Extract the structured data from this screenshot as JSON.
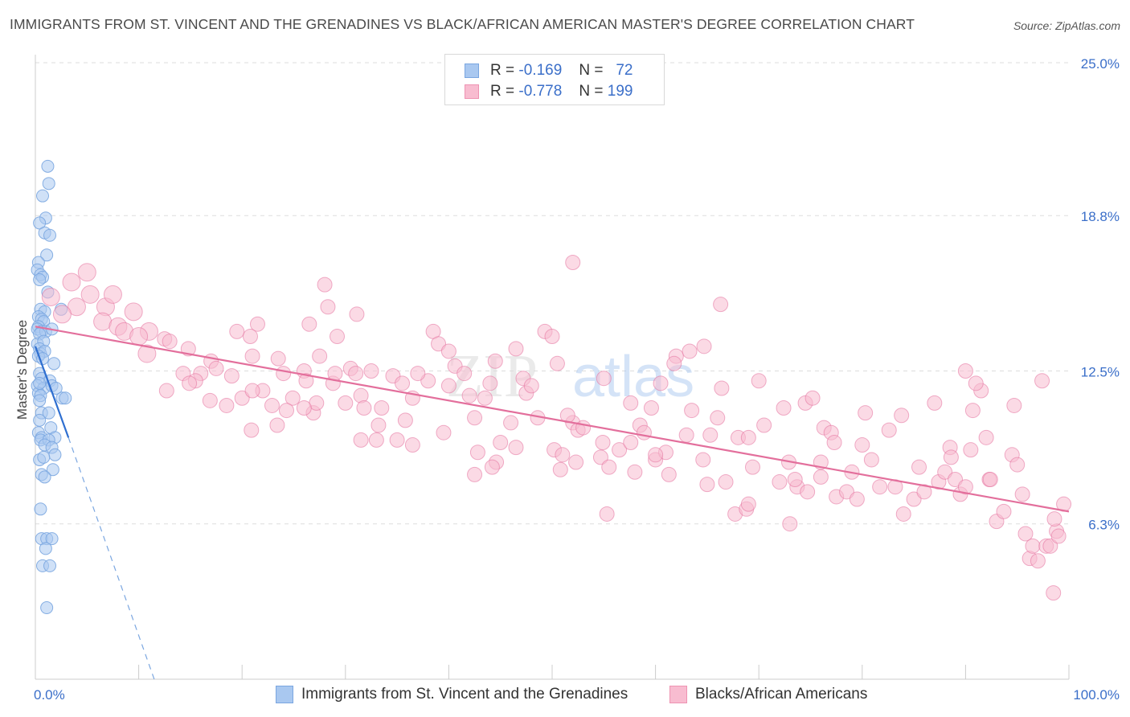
{
  "title": "IMMIGRANTS FROM ST. VINCENT AND THE GRENADINES VS BLACK/AFRICAN AMERICAN MASTER'S DEGREE CORRELATION CHART",
  "source": "Source: ZipAtlas.com",
  "watermark": {
    "zip": "ZIP",
    "atlas": "atlas"
  },
  "legend": {
    "rows": [
      {
        "r_label": "R =",
        "r_value": "-0.169",
        "n_label": "N =",
        "n_value": "72",
        "color": "#a9c8f0",
        "border": "#7aa6e0"
      },
      {
        "r_label": "R =",
        "r_value": "-0.778",
        "n_label": "N =",
        "n_value": "199",
        "color": "#f8bcd0",
        "border": "#ee93b2"
      }
    ]
  },
  "chart_data": {
    "type": "scatter",
    "ylabel": "Master's Degree",
    "xlim": [
      0,
      100
    ],
    "ylim": [
      0,
      25
    ],
    "x_tick_labels": [
      "0.0%",
      "100.0%"
    ],
    "y_ticks": [
      6.3,
      12.5,
      18.8,
      25.0
    ],
    "y_tick_labels": [
      "6.3%",
      "12.5%",
      "18.8%",
      "25.0%"
    ],
    "grid": true,
    "legend_position": "top-center",
    "series": [
      {
        "name": "Immigrants from St. Vincent and the Grenadines",
        "color": "#7aa6e0",
        "fill": "#a9c8f0",
        "trend": {
          "x1": 0.0,
          "y1": 13.5,
          "x2": 3.2,
          "y2": 9.8,
          "dash_x2": 11.5,
          "dash_y2": 0.0
        },
        "points": [
          [
            1.2,
            20.8
          ],
          [
            1.3,
            20.1
          ],
          [
            0.7,
            19.6
          ],
          [
            1.0,
            18.7
          ],
          [
            0.4,
            18.5
          ],
          [
            0.9,
            18.1
          ],
          [
            1.4,
            18.0
          ],
          [
            1.1,
            17.2
          ],
          [
            0.3,
            16.9
          ],
          [
            0.2,
            16.6
          ],
          [
            0.5,
            16.4
          ],
          [
            0.7,
            16.3
          ],
          [
            0.4,
            16.2
          ],
          [
            1.2,
            15.7
          ],
          [
            0.5,
            15.0
          ],
          [
            0.9,
            14.9
          ],
          [
            2.5,
            15.0
          ],
          [
            0.3,
            14.7
          ],
          [
            0.6,
            14.6
          ],
          [
            0.8,
            14.5
          ],
          [
            0.3,
            14.3
          ],
          [
            0.2,
            14.2
          ],
          [
            0.6,
            14.1
          ],
          [
            1.0,
            14.1
          ],
          [
            1.6,
            14.2
          ],
          [
            0.4,
            14.0
          ],
          [
            0.2,
            13.6
          ],
          [
            0.8,
            13.7
          ],
          [
            0.4,
            13.4
          ],
          [
            0.5,
            13.2
          ],
          [
            0.9,
            13.3
          ],
          [
            0.3,
            13.1
          ],
          [
            0.7,
            13.0
          ],
          [
            1.8,
            12.8
          ],
          [
            0.4,
            12.4
          ],
          [
            0.6,
            12.2
          ],
          [
            1.4,
            12.1
          ],
          [
            0.2,
            11.9
          ],
          [
            0.8,
            11.8
          ],
          [
            1.6,
            11.9
          ],
          [
            2.0,
            11.8
          ],
          [
            0.3,
            11.6
          ],
          [
            0.5,
            11.5
          ],
          [
            0.4,
            11.3
          ],
          [
            2.6,
            11.4
          ],
          [
            2.9,
            11.4
          ],
          [
            0.6,
            10.8
          ],
          [
            1.3,
            10.8
          ],
          [
            0.4,
            10.5
          ],
          [
            1.5,
            10.2
          ],
          [
            0.3,
            10.0
          ],
          [
            0.6,
            9.8
          ],
          [
            1.9,
            9.8
          ],
          [
            0.5,
            9.7
          ],
          [
            1.3,
            9.7
          ],
          [
            0.9,
            9.5
          ],
          [
            1.6,
            9.4
          ],
          [
            1.9,
            9.1
          ],
          [
            0.4,
            8.9
          ],
          [
            1.7,
            8.5
          ],
          [
            0.6,
            8.3
          ],
          [
            0.9,
            8.2
          ],
          [
            0.5,
            6.9
          ],
          [
            0.6,
            5.7
          ],
          [
            1.1,
            5.7
          ],
          [
            1.6,
            5.7
          ],
          [
            1.0,
            5.3
          ],
          [
            0.7,
            4.6
          ],
          [
            1.4,
            4.6
          ],
          [
            1.1,
            2.9
          ],
          [
            0.4,
            12.0
          ],
          [
            0.8,
            9.0
          ]
        ]
      },
      {
        "name": "Blacks/African Americans",
        "color": "#e36f9c",
        "fill": "#f8bcd0",
        "trend": {
          "x1": 0.0,
          "y1": 14.3,
          "x2": 100.0,
          "y2": 6.8
        },
        "points": [
          [
            1.5,
            15.5
          ],
          [
            3.5,
            16.1
          ],
          [
            5.0,
            16.5
          ],
          [
            5.3,
            15.6
          ],
          [
            4.0,
            15.1
          ],
          [
            6.8,
            15.1
          ],
          [
            2.6,
            14.8
          ],
          [
            7.5,
            15.6
          ],
          [
            9.5,
            14.9
          ],
          [
            6.5,
            14.5
          ],
          [
            8.0,
            14.3
          ],
          [
            8.6,
            14.1
          ],
          [
            11.0,
            14.1
          ],
          [
            10.0,
            13.9
          ],
          [
            12.5,
            13.8
          ],
          [
            13.0,
            13.7
          ],
          [
            14.8,
            13.4
          ],
          [
            10.8,
            13.2
          ],
          [
            17.0,
            12.9
          ],
          [
            17.5,
            12.6
          ],
          [
            14.3,
            12.4
          ],
          [
            16.0,
            12.4
          ],
          [
            15.5,
            12.1
          ],
          [
            12.7,
            11.7
          ],
          [
            14.9,
            12.0
          ],
          [
            19.5,
            14.1
          ],
          [
            21.5,
            14.4
          ],
          [
            20.8,
            13.9
          ],
          [
            21.0,
            13.1
          ],
          [
            23.5,
            13.0
          ],
          [
            19.0,
            12.3
          ],
          [
            24.0,
            12.4
          ],
          [
            22.0,
            11.7
          ],
          [
            22.9,
            11.1
          ],
          [
            20.0,
            11.4
          ],
          [
            18.5,
            11.1
          ],
          [
            21.0,
            11.7
          ],
          [
            16.9,
            11.3
          ],
          [
            28.0,
            16.0
          ],
          [
            26.5,
            14.4
          ],
          [
            26.0,
            12.5
          ],
          [
            24.9,
            11.4
          ],
          [
            28.8,
            12.0
          ],
          [
            24.3,
            10.9
          ],
          [
            20.9,
            10.1
          ],
          [
            23.4,
            10.3
          ],
          [
            26.9,
            10.8
          ],
          [
            27.2,
            11.2
          ],
          [
            26.0,
            11.0
          ],
          [
            27.5,
            13.1
          ],
          [
            29.0,
            12.4
          ],
          [
            30.5,
            12.6
          ],
          [
            31.0,
            12.4
          ],
          [
            31.5,
            11.5
          ],
          [
            30.0,
            11.2
          ],
          [
            31.8,
            11.0
          ],
          [
            28.3,
            15.1
          ],
          [
            31.1,
            14.8
          ],
          [
            29.2,
            13.9
          ],
          [
            32.5,
            12.5
          ],
          [
            33.5,
            11.0
          ],
          [
            33.0,
            9.7
          ],
          [
            35.0,
            9.7
          ],
          [
            36.5,
            9.5
          ],
          [
            36.5,
            11.4
          ],
          [
            38.0,
            12.1
          ],
          [
            37.0,
            12.4
          ],
          [
            34.6,
            12.3
          ],
          [
            35.8,
            10.5
          ],
          [
            38.5,
            14.1
          ],
          [
            39.0,
            13.6
          ],
          [
            40.0,
            13.3
          ],
          [
            40.6,
            12.7
          ],
          [
            42.0,
            11.5
          ],
          [
            41.5,
            12.4
          ],
          [
            42.5,
            10.6
          ],
          [
            40.0,
            11.9
          ],
          [
            42.8,
            9.2
          ],
          [
            44.6,
            8.8
          ],
          [
            44.2,
            8.6
          ],
          [
            46.5,
            13.4
          ],
          [
            44.5,
            12.9
          ],
          [
            43.5,
            11.4
          ],
          [
            46.0,
            10.4
          ],
          [
            45.0,
            9.6
          ],
          [
            42.5,
            8.3
          ],
          [
            47.5,
            11.6
          ],
          [
            47.2,
            12.2
          ],
          [
            48.0,
            11.9
          ],
          [
            49.3,
            14.1
          ],
          [
            48.6,
            10.6
          ],
          [
            50.2,
            9.3
          ],
          [
            51.0,
            9.1
          ],
          [
            52.0,
            10.4
          ],
          [
            52.5,
            10.1
          ],
          [
            53.0,
            10.2
          ],
          [
            54.7,
            9.0
          ],
          [
            54.9,
            9.6
          ],
          [
            50.8,
            8.5
          ],
          [
            52.3,
            8.8
          ],
          [
            50.5,
            12.8
          ],
          [
            51.5,
            10.7
          ],
          [
            52.0,
            16.9
          ],
          [
            55.5,
            8.6
          ],
          [
            56.5,
            9.3
          ],
          [
            55.3,
            6.7
          ],
          [
            57.6,
            9.6
          ],
          [
            57.6,
            11.2
          ],
          [
            58.5,
            10.3
          ],
          [
            58.9,
            10.0
          ],
          [
            59.6,
            11.0
          ],
          [
            60.0,
            8.9
          ],
          [
            61.0,
            9.2
          ],
          [
            61.3,
            8.3
          ],
          [
            63.3,
            13.3
          ],
          [
            62.0,
            13.1
          ],
          [
            63.5,
            10.9
          ],
          [
            63.0,
            9.9
          ],
          [
            64.6,
            8.9
          ],
          [
            61.8,
            12.8
          ],
          [
            65.3,
            9.9
          ],
          [
            65.0,
            7.9
          ],
          [
            66.0,
            10.6
          ],
          [
            66.4,
            11.8
          ],
          [
            66.8,
            8.0
          ],
          [
            67.7,
            6.7
          ],
          [
            66.3,
            15.2
          ],
          [
            68.0,
            9.8
          ],
          [
            68.8,
            6.9
          ],
          [
            69.4,
            8.6
          ],
          [
            69.0,
            7.1
          ],
          [
            70.0,
            12.1
          ],
          [
            70.5,
            10.3
          ],
          [
            72.0,
            8.0
          ],
          [
            72.4,
            11.0
          ],
          [
            72.9,
            8.8
          ],
          [
            73.7,
            7.8
          ],
          [
            74.5,
            11.2
          ],
          [
            73.5,
            8.1
          ],
          [
            74.7,
            7.6
          ],
          [
            75.2,
            11.4
          ],
          [
            76.0,
            8.8
          ],
          [
            76.3,
            10.2
          ],
          [
            76.0,
            8.2
          ],
          [
            77.5,
            7.4
          ],
          [
            77.0,
            10.0
          ],
          [
            77.3,
            9.6
          ],
          [
            78.5,
            7.6
          ],
          [
            79.0,
            8.4
          ],
          [
            80.0,
            9.5
          ],
          [
            80.3,
            10.8
          ],
          [
            79.5,
            7.3
          ],
          [
            80.9,
            8.9
          ],
          [
            81.7,
            7.8
          ],
          [
            82.6,
            10.1
          ],
          [
            83.8,
            10.7
          ],
          [
            83.2,
            7.8
          ],
          [
            84.0,
            6.7
          ],
          [
            85.0,
            7.3
          ],
          [
            85.5,
            8.6
          ],
          [
            86.0,
            7.6
          ],
          [
            87.0,
            11.2
          ],
          [
            87.4,
            8.0
          ],
          [
            88.0,
            8.4
          ],
          [
            88.5,
            9.4
          ],
          [
            89.0,
            8.1
          ],
          [
            89.5,
            7.5
          ],
          [
            90.5,
            9.3
          ],
          [
            90.0,
            7.8
          ],
          [
            91.5,
            11.7
          ],
          [
            90.0,
            12.5
          ],
          [
            90.7,
            10.9
          ],
          [
            91.0,
            12.0
          ],
          [
            92.0,
            9.8
          ],
          [
            92.3,
            8.1
          ],
          [
            92.4,
            8.1
          ],
          [
            93.0,
            6.4
          ],
          [
            93.7,
            6.8
          ],
          [
            94.5,
            9.1
          ],
          [
            94.7,
            11.1
          ],
          [
            95.0,
            8.7
          ],
          [
            95.5,
            7.5
          ],
          [
            95.8,
            5.9
          ],
          [
            96.2,
            4.9
          ],
          [
            97.0,
            4.8
          ],
          [
            97.4,
            12.1
          ],
          [
            96.5,
            5.4
          ],
          [
            97.8,
            5.4
          ],
          [
            98.2,
            5.4
          ],
          [
            98.8,
            6.0
          ],
          [
            99.0,
            5.8
          ],
          [
            99.5,
            7.1
          ],
          [
            98.6,
            6.5
          ],
          [
            98.5,
            3.5
          ],
          [
            60.5,
            12.0
          ],
          [
            50.0,
            13.9
          ],
          [
            64.7,
            13.5
          ],
          [
            58.0,
            8.4
          ],
          [
            55.0,
            12.2
          ],
          [
            44.0,
            12.0
          ],
          [
            39.5,
            10.0
          ],
          [
            35.5,
            12.0
          ],
          [
            31.5,
            9.7
          ],
          [
            73.0,
            6.3
          ],
          [
            88.6,
            9.0
          ],
          [
            33.2,
            10.3
          ],
          [
            46.5,
            9.4
          ],
          [
            69.0,
            9.8
          ],
          [
            60.0,
            9.1
          ],
          [
            26.2,
            12.1
          ]
        ]
      }
    ]
  },
  "bottom_legend": [
    {
      "label": "Immigrants from St. Vincent and the Grenadines",
      "color": "#a9c8f0",
      "border": "#7aa6e0"
    },
    {
      "label": "Blacks/African Americans",
      "color": "#f8bcd0",
      "border": "#ee93b2"
    }
  ]
}
